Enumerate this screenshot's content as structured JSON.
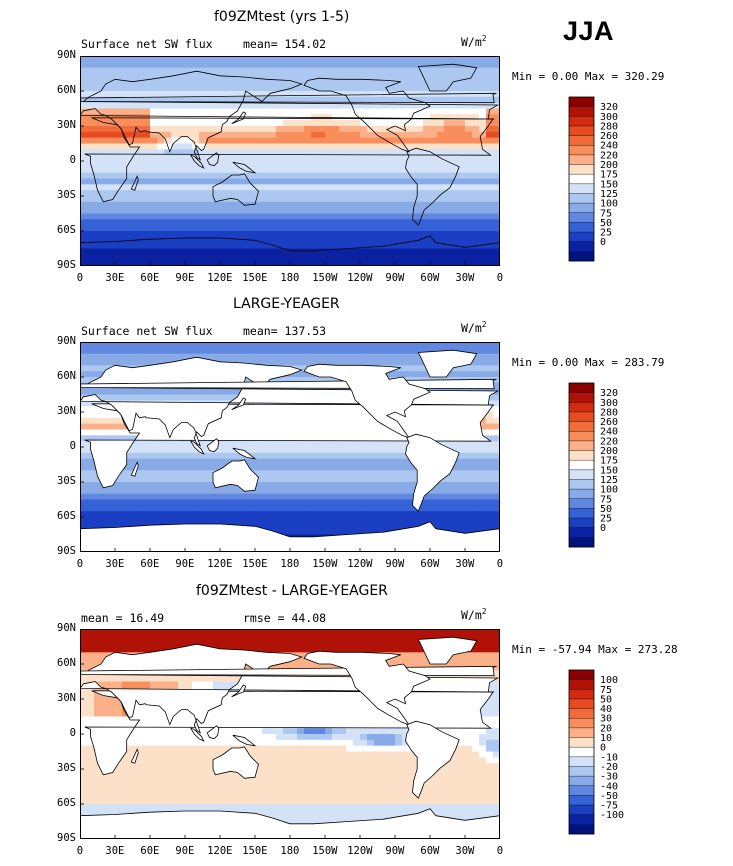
{
  "season": "JJA",
  "panels": [
    {
      "title": "f09ZMtest (yrs 1-5)",
      "sub_left": "Surface net SW flux",
      "sub_mid": "mean= 154.02",
      "units_base": "W/m",
      "units_exp": "2",
      "minmax": "Min =    0.00 Max = 320.29",
      "field": "control",
      "colorbar": {
        "labels": [
          "320",
          "300",
          "280",
          "260",
          "240",
          "220",
          "200",
          "175",
          "150",
          "125",
          "100",
          "75",
          "50",
          "25",
          "0"
        ],
        "colors": [
          "#8b0000",
          "#b01208",
          "#d42a10",
          "#e84a22",
          "#f26b3a",
          "#f88e5c",
          "#fbb08a",
          "#fde0c8",
          "#ffffff",
          "#d3e2f7",
          "#adc8f0",
          "#88abe8",
          "#6088e0",
          "#3562d6",
          "#1a3fc2",
          "#0a22a2",
          "#00137a"
        ]
      }
    },
    {
      "title": "LARGE-YEAGER",
      "sub_left": "Surface net SW flux",
      "sub_mid": "mean= 137.53",
      "units_base": "W/m",
      "units_exp": "2",
      "minmax": "Min =    0.00 Max = 283.79",
      "field": "obs",
      "colorbar": {
        "labels": [
          "320",
          "300",
          "280",
          "260",
          "240",
          "220",
          "200",
          "175",
          "150",
          "125",
          "100",
          "75",
          "50",
          "25",
          "0"
        ],
        "colors": [
          "#8b0000",
          "#b01208",
          "#d42a10",
          "#e84a22",
          "#f26b3a",
          "#f88e5c",
          "#fbb08a",
          "#fde0c8",
          "#ffffff",
          "#d3e2f7",
          "#adc8f0",
          "#88abe8",
          "#6088e0",
          "#3562d6",
          "#1a3fc2",
          "#0a22a2",
          "#00137a"
        ]
      }
    },
    {
      "title": "f09ZMtest - LARGE-YEAGER",
      "sub_left": "mean =   16.49",
      "sub_mid": "rmse =   44.08",
      "units_base": "W/m",
      "units_exp": "2",
      "minmax": "Min = -57.94 Max = 273.28",
      "field": "diff",
      "colorbar": {
        "labels": [
          "100",
          "75",
          "50",
          "40",
          "30",
          "20",
          "10",
          "0",
          "-10",
          "-20",
          "-30",
          "-40",
          "-50",
          "-75",
          "-100"
        ],
        "colors": [
          "#8b0000",
          "#b01208",
          "#d42a10",
          "#e84a22",
          "#f26b3a",
          "#f88e5c",
          "#fbb08a",
          "#fde0c8",
          "#ffffff",
          "#d3e2f7",
          "#adc8f0",
          "#88abe8",
          "#6088e0",
          "#3562d6",
          "#1a3fc2",
          "#0a22a2",
          "#00137a"
        ]
      }
    }
  ],
  "axes": {
    "lat_labels": [
      "90N",
      "60N",
      "30N",
      "0",
      "30S",
      "60S",
      "90S"
    ],
    "lon_labels": [
      "0",
      "30E",
      "60E",
      "90E",
      "120E",
      "150E",
      "180",
      "150W",
      "120W",
      "90W",
      "60W",
      "30W",
      "0"
    ]
  }
}
